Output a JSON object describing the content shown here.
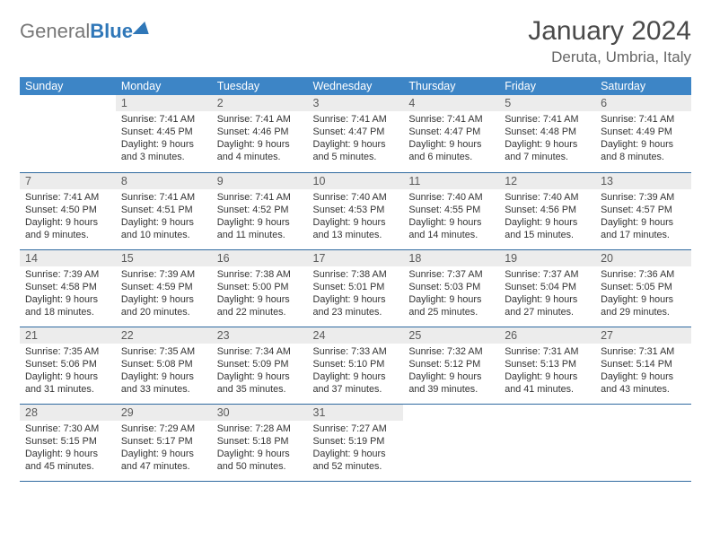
{
  "brand": {
    "gray": "General",
    "blue": "Blue"
  },
  "title": "January 2024",
  "location": "Deruta, Umbria, Italy",
  "colors": {
    "header_bg": "#3d85c6",
    "header_fg": "#ffffff",
    "daynum_bg": "#ececec",
    "rule": "#2f6aa0",
    "brand_blue": "#2f77b8"
  },
  "weekdays": [
    "Sunday",
    "Monday",
    "Tuesday",
    "Wednesday",
    "Thursday",
    "Friday",
    "Saturday"
  ],
  "weeks": [
    [
      null,
      {
        "n": "1",
        "sr": "Sunrise: 7:41 AM",
        "ss": "Sunset: 4:45 PM",
        "dl": "Daylight: 9 hours and 3 minutes."
      },
      {
        "n": "2",
        "sr": "Sunrise: 7:41 AM",
        "ss": "Sunset: 4:46 PM",
        "dl": "Daylight: 9 hours and 4 minutes."
      },
      {
        "n": "3",
        "sr": "Sunrise: 7:41 AM",
        "ss": "Sunset: 4:47 PM",
        "dl": "Daylight: 9 hours and 5 minutes."
      },
      {
        "n": "4",
        "sr": "Sunrise: 7:41 AM",
        "ss": "Sunset: 4:47 PM",
        "dl": "Daylight: 9 hours and 6 minutes."
      },
      {
        "n": "5",
        "sr": "Sunrise: 7:41 AM",
        "ss": "Sunset: 4:48 PM",
        "dl": "Daylight: 9 hours and 7 minutes."
      },
      {
        "n": "6",
        "sr": "Sunrise: 7:41 AM",
        "ss": "Sunset: 4:49 PM",
        "dl": "Daylight: 9 hours and 8 minutes."
      }
    ],
    [
      {
        "n": "7",
        "sr": "Sunrise: 7:41 AM",
        "ss": "Sunset: 4:50 PM",
        "dl": "Daylight: 9 hours and 9 minutes."
      },
      {
        "n": "8",
        "sr": "Sunrise: 7:41 AM",
        "ss": "Sunset: 4:51 PM",
        "dl": "Daylight: 9 hours and 10 minutes."
      },
      {
        "n": "9",
        "sr": "Sunrise: 7:41 AM",
        "ss": "Sunset: 4:52 PM",
        "dl": "Daylight: 9 hours and 11 minutes."
      },
      {
        "n": "10",
        "sr": "Sunrise: 7:40 AM",
        "ss": "Sunset: 4:53 PM",
        "dl": "Daylight: 9 hours and 13 minutes."
      },
      {
        "n": "11",
        "sr": "Sunrise: 7:40 AM",
        "ss": "Sunset: 4:55 PM",
        "dl": "Daylight: 9 hours and 14 minutes."
      },
      {
        "n": "12",
        "sr": "Sunrise: 7:40 AM",
        "ss": "Sunset: 4:56 PM",
        "dl": "Daylight: 9 hours and 15 minutes."
      },
      {
        "n": "13",
        "sr": "Sunrise: 7:39 AM",
        "ss": "Sunset: 4:57 PM",
        "dl": "Daylight: 9 hours and 17 minutes."
      }
    ],
    [
      {
        "n": "14",
        "sr": "Sunrise: 7:39 AM",
        "ss": "Sunset: 4:58 PM",
        "dl": "Daylight: 9 hours and 18 minutes."
      },
      {
        "n": "15",
        "sr": "Sunrise: 7:39 AM",
        "ss": "Sunset: 4:59 PM",
        "dl": "Daylight: 9 hours and 20 minutes."
      },
      {
        "n": "16",
        "sr": "Sunrise: 7:38 AM",
        "ss": "Sunset: 5:00 PM",
        "dl": "Daylight: 9 hours and 22 minutes."
      },
      {
        "n": "17",
        "sr": "Sunrise: 7:38 AM",
        "ss": "Sunset: 5:01 PM",
        "dl": "Daylight: 9 hours and 23 minutes."
      },
      {
        "n": "18",
        "sr": "Sunrise: 7:37 AM",
        "ss": "Sunset: 5:03 PM",
        "dl": "Daylight: 9 hours and 25 minutes."
      },
      {
        "n": "19",
        "sr": "Sunrise: 7:37 AM",
        "ss": "Sunset: 5:04 PM",
        "dl": "Daylight: 9 hours and 27 minutes."
      },
      {
        "n": "20",
        "sr": "Sunrise: 7:36 AM",
        "ss": "Sunset: 5:05 PM",
        "dl": "Daylight: 9 hours and 29 minutes."
      }
    ],
    [
      {
        "n": "21",
        "sr": "Sunrise: 7:35 AM",
        "ss": "Sunset: 5:06 PM",
        "dl": "Daylight: 9 hours and 31 minutes."
      },
      {
        "n": "22",
        "sr": "Sunrise: 7:35 AM",
        "ss": "Sunset: 5:08 PM",
        "dl": "Daylight: 9 hours and 33 minutes."
      },
      {
        "n": "23",
        "sr": "Sunrise: 7:34 AM",
        "ss": "Sunset: 5:09 PM",
        "dl": "Daylight: 9 hours and 35 minutes."
      },
      {
        "n": "24",
        "sr": "Sunrise: 7:33 AM",
        "ss": "Sunset: 5:10 PM",
        "dl": "Daylight: 9 hours and 37 minutes."
      },
      {
        "n": "25",
        "sr": "Sunrise: 7:32 AM",
        "ss": "Sunset: 5:12 PM",
        "dl": "Daylight: 9 hours and 39 minutes."
      },
      {
        "n": "26",
        "sr": "Sunrise: 7:31 AM",
        "ss": "Sunset: 5:13 PM",
        "dl": "Daylight: 9 hours and 41 minutes."
      },
      {
        "n": "27",
        "sr": "Sunrise: 7:31 AM",
        "ss": "Sunset: 5:14 PM",
        "dl": "Daylight: 9 hours and 43 minutes."
      }
    ],
    [
      {
        "n": "28",
        "sr": "Sunrise: 7:30 AM",
        "ss": "Sunset: 5:15 PM",
        "dl": "Daylight: 9 hours and 45 minutes."
      },
      {
        "n": "29",
        "sr": "Sunrise: 7:29 AM",
        "ss": "Sunset: 5:17 PM",
        "dl": "Daylight: 9 hours and 47 minutes."
      },
      {
        "n": "30",
        "sr": "Sunrise: 7:28 AM",
        "ss": "Sunset: 5:18 PM",
        "dl": "Daylight: 9 hours and 50 minutes."
      },
      {
        "n": "31",
        "sr": "Sunrise: 7:27 AM",
        "ss": "Sunset: 5:19 PM",
        "dl": "Daylight: 9 hours and 52 minutes."
      },
      null,
      null,
      null
    ]
  ]
}
